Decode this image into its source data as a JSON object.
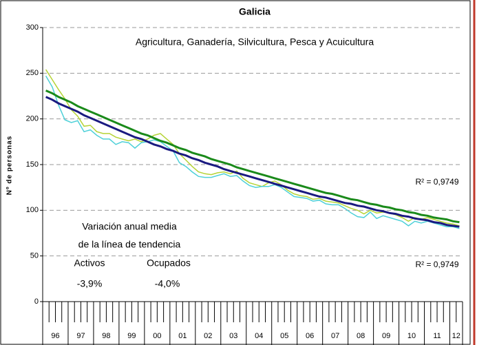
{
  "chart_data": {
    "type": "line",
    "title": "Galicia",
    "subtitle": "Agricultura, Ganadería, Silvicultura, Pesca y Acuicultura",
    "y_label": "Nº de personas",
    "categories": [
      "96",
      null,
      null,
      null,
      "97",
      null,
      null,
      null,
      "98",
      null,
      null,
      null,
      "99",
      null,
      null,
      null,
      "00",
      null,
      null,
      null,
      "01",
      null,
      null,
      null,
      "02",
      null,
      null,
      null,
      "03",
      null,
      null,
      null,
      "04",
      null,
      null,
      null,
      "05",
      null,
      null,
      null,
      "06",
      null,
      null,
      null,
      "07",
      null,
      null,
      null,
      "08",
      null,
      null,
      null,
      "09",
      null,
      null,
      null,
      "10",
      null,
      null,
      null,
      "11",
      null,
      null,
      null,
      "12",
      null
    ],
    "series": [
      {
        "color": "#b5d334",
        "width": 1.5,
        "values": [
          254,
          243,
          232,
          222,
          210,
          203,
          192,
          193,
          186,
          184,
          184,
          180,
          178,
          176,
          178,
          175,
          178,
          182,
          184,
          178,
          172,
          162,
          155,
          148,
          142,
          140,
          139,
          141,
          142,
          140,
          143,
          135,
          130,
          128,
          126,
          130,
          132,
          128,
          122,
          118,
          116,
          115,
          112,
          113,
          110,
          109,
          108,
          105,
          102,
          100,
          96,
          100,
          97,
          98,
          97,
          95,
          92,
          88,
          92,
          90,
          92,
          90,
          88,
          86,
          85,
          83
        ]
      },
      {
        "color": "#4dd0d8",
        "width": 1.5,
        "values": [
          247,
          235,
          215,
          199,
          196,
          198,
          186,
          188,
          182,
          178,
          178,
          172,
          175,
          174,
          168,
          174,
          175,
          177,
          175,
          170,
          165,
          152,
          148,
          142,
          137,
          136,
          136,
          138,
          140,
          137,
          138,
          132,
          127,
          125,
          126,
          126,
          128,
          125,
          120,
          115,
          114,
          113,
          110,
          111,
          107,
          106,
          106,
          102,
          97,
          93,
          92,
          98,
          91,
          94,
          92,
          90,
          88,
          83,
          88,
          86,
          88,
          86,
          84,
          82,
          82,
          80
        ]
      },
      {
        "color": "#1a8a1a",
        "width": 3,
        "values": [
          231,
          228,
          224,
          221,
          218,
          214,
          211,
          208,
          205,
          202,
          199,
          196,
          193,
          190,
          187,
          184,
          182,
          179,
          176,
          174,
          171,
          168,
          166,
          163,
          161,
          159,
          156,
          154,
          152,
          150,
          147,
          145,
          143,
          141,
          139,
          137,
          135,
          133,
          131,
          129,
          127,
          125,
          123,
          121,
          119,
          118,
          116,
          114,
          112,
          111,
          109,
          107,
          106,
          104,
          103,
          101,
          100,
          98,
          97,
          95,
          94,
          92,
          91,
          90,
          88,
          87
        ]
      },
      {
        "color": "#1a1a80",
        "width": 3,
        "values": [
          224,
          221,
          217,
          214,
          211,
          208,
          204,
          201,
          198,
          195,
          192,
          189,
          186,
          183,
          180,
          178,
          175,
          172,
          170,
          167,
          165,
          162,
          160,
          157,
          155,
          152,
          150,
          148,
          145,
          143,
          141,
          139,
          137,
          135,
          133,
          131,
          129,
          127,
          125,
          123,
          121,
          119,
          117,
          115,
          114,
          112,
          110,
          108,
          107,
          105,
          104,
          102,
          100,
          99,
          97,
          96,
          94,
          93,
          91,
          90,
          89,
          87,
          86,
          84,
          83,
          82
        ]
      }
    ],
    "ylim": [
      0,
      300
    ],
    "yticks": [
      0,
      50,
      100,
      150,
      200,
      250,
      300
    ],
    "grid": true,
    "annotations": [
      "Variación anual media",
      "de la línea de tendencia",
      "Activos",
      "Ocupados",
      "-3,9%",
      "-4,0%",
      "R² = 0,9749",
      "R² = 0,9749"
    ]
  }
}
